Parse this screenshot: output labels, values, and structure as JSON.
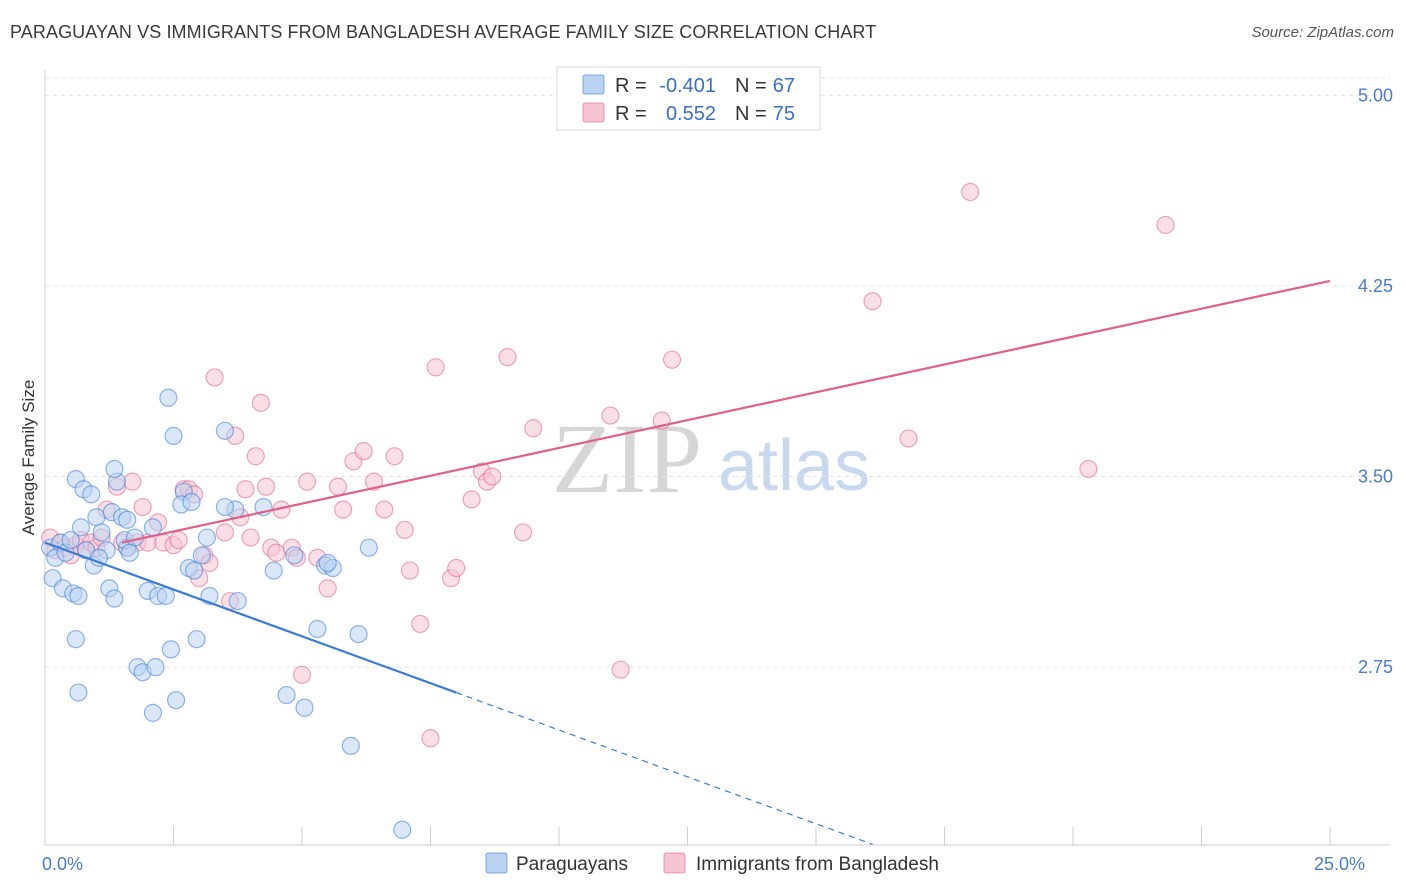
{
  "title": "PARAGUAYAN VS IMMIGRANTS FROM BANGLADESH AVERAGE FAMILY SIZE CORRELATION CHART",
  "source": "Source: ZipAtlas.com",
  "watermark": {
    "zip": "ZIP",
    "atlas": "atlas"
  },
  "colors": {
    "blue": "#3a7bd5",
    "blue_fill": "#b9d3f2",
    "pink": "#e0608a",
    "pink_fill": "#f7c4d4",
    "tick": "#4a7cc9"
  },
  "chart_data": {
    "type": "scatter",
    "xlabel": "",
    "ylabel": "Average Family Size",
    "xlim": [
      0,
      25
    ],
    "ylim": [
      2.05,
      5.1
    ],
    "x_tick_labels": [
      {
        "value": 0,
        "label": "0.0%"
      },
      {
        "value": 25,
        "label": "25.0%"
      }
    ],
    "y_ticks": [
      {
        "value": 2.75,
        "label": "2.75"
      },
      {
        "value": 3.5,
        "label": "3.50"
      },
      {
        "value": 4.25,
        "label": "4.25"
      },
      {
        "value": 5.0,
        "label": "5.00"
      }
    ],
    "legend": {
      "placement": "top-center",
      "rows": [
        {
          "r_label": "R =",
          "r_value": "-0.401",
          "n_label": "N =",
          "n_value": "67"
        },
        {
          "r_label": "R =",
          "r_value": "0.552",
          "n_label": "N =",
          "n_value": "75"
        }
      ]
    },
    "series": [
      {
        "name": "Paraguayans",
        "color": "#3a7bd5",
        "trend": {
          "x0": 0,
          "y0": 3.24,
          "x1": 8,
          "y1": 2.65,
          "dash_to_x": 16.1
        },
        "points": [
          [
            0.1,
            3.22
          ],
          [
            0.2,
            3.18
          ],
          [
            0.15,
            3.1
          ],
          [
            0.3,
            3.24
          ],
          [
            0.4,
            3.2
          ],
          [
            0.35,
            3.06
          ],
          [
            0.5,
            3.25
          ],
          [
            0.6,
            3.49
          ],
          [
            0.7,
            3.3
          ],
          [
            0.55,
            3.04
          ],
          [
            0.65,
            3.03
          ],
          [
            0.8,
            3.21
          ],
          [
            0.75,
            3.45
          ],
          [
            0.9,
            3.43
          ],
          [
            1.0,
            3.34
          ],
          [
            1.1,
            3.28
          ],
          [
            0.95,
            3.15
          ],
          [
            1.2,
            3.21
          ],
          [
            1.05,
            3.18
          ],
          [
            1.3,
            3.36
          ],
          [
            1.4,
            3.48
          ],
          [
            1.25,
            3.06
          ],
          [
            1.35,
            3.02
          ],
          [
            1.5,
            3.34
          ],
          [
            1.6,
            3.22
          ],
          [
            1.55,
            3.25
          ],
          [
            1.75,
            3.26
          ],
          [
            1.65,
            3.2
          ],
          [
            0.6,
            2.86
          ],
          [
            0.65,
            2.65
          ],
          [
            1.35,
            3.53
          ],
          [
            1.6,
            3.33
          ],
          [
            1.8,
            2.75
          ],
          [
            1.9,
            2.73
          ],
          [
            2.0,
            3.05
          ],
          [
            2.1,
            3.3
          ],
          [
            2.15,
            2.75
          ],
          [
            2.2,
            3.03
          ],
          [
            2.35,
            3.03
          ],
          [
            2.4,
            3.81
          ],
          [
            2.45,
            2.82
          ],
          [
            2.5,
            3.66
          ],
          [
            2.55,
            2.62
          ],
          [
            2.7,
            3.44
          ],
          [
            2.65,
            3.39
          ],
          [
            2.8,
            3.14
          ],
          [
            2.85,
            3.4
          ],
          [
            2.9,
            3.13
          ],
          [
            2.95,
            2.86
          ],
          [
            3.05,
            3.19
          ],
          [
            3.15,
            3.26
          ],
          [
            3.2,
            3.03
          ],
          [
            3.5,
            3.68
          ],
          [
            2.1,
            2.57
          ],
          [
            3.7,
            3.37
          ],
          [
            3.75,
            3.01
          ],
          [
            4.25,
            3.38
          ],
          [
            4.45,
            3.13
          ],
          [
            4.85,
            3.19
          ],
          [
            5.05,
            2.59
          ],
          [
            5.3,
            2.9
          ],
          [
            5.45,
            3.15
          ],
          [
            5.6,
            3.14
          ],
          [
            5.5,
            3.16
          ],
          [
            6.1,
            2.88
          ],
          [
            6.3,
            3.22
          ],
          [
            5.95,
            2.44
          ],
          [
            6.95,
            2.11
          ],
          [
            3.5,
            3.38
          ],
          [
            4.7,
            2.64
          ]
        ]
      },
      {
        "name": "Immigrants from Bangladesh",
        "color": "#e0608a",
        "trend": {
          "x0": 1.5,
          "y0": 3.24,
          "x1": 25,
          "y1": 4.27
        },
        "points": [
          [
            0.1,
            3.26
          ],
          [
            0.2,
            3.21
          ],
          [
            0.3,
            3.24
          ],
          [
            0.4,
            3.22
          ],
          [
            0.5,
            3.19
          ],
          [
            0.6,
            3.23
          ],
          [
            0.7,
            3.25
          ],
          [
            0.8,
            3.21
          ],
          [
            0.9,
            3.24
          ],
          [
            1.0,
            3.22
          ],
          [
            1.1,
            3.26
          ],
          [
            1.2,
            3.37
          ],
          [
            1.4,
            3.46
          ],
          [
            1.5,
            3.24
          ],
          [
            1.6,
            3.22
          ],
          [
            1.7,
            3.48
          ],
          [
            1.8,
            3.24
          ],
          [
            1.9,
            3.38
          ],
          [
            2.0,
            3.24
          ],
          [
            2.2,
            3.32
          ],
          [
            2.3,
            3.24
          ],
          [
            2.5,
            3.23
          ],
          [
            2.6,
            3.25
          ],
          [
            2.7,
            3.45
          ],
          [
            2.8,
            3.45
          ],
          [
            2.9,
            3.43
          ],
          [
            3.0,
            3.1
          ],
          [
            3.1,
            3.19
          ],
          [
            3.2,
            3.16
          ],
          [
            3.3,
            3.89
          ],
          [
            3.5,
            3.28
          ],
          [
            3.6,
            3.01
          ],
          [
            3.7,
            3.66
          ],
          [
            3.8,
            3.34
          ],
          [
            3.9,
            3.45
          ],
          [
            4.0,
            3.26
          ],
          [
            4.1,
            3.58
          ],
          [
            4.2,
            3.79
          ],
          [
            4.3,
            3.46
          ],
          [
            4.4,
            3.22
          ],
          [
            4.5,
            3.2
          ],
          [
            4.6,
            3.37
          ],
          [
            4.8,
            3.22
          ],
          [
            4.9,
            3.18
          ],
          [
            5.0,
            2.72
          ],
          [
            5.1,
            3.48
          ],
          [
            5.3,
            3.18
          ],
          [
            5.5,
            3.06
          ],
          [
            5.7,
            3.46
          ],
          [
            5.8,
            3.37
          ],
          [
            6.0,
            3.56
          ],
          [
            6.2,
            3.6
          ],
          [
            6.4,
            3.48
          ],
          [
            6.6,
            3.37
          ],
          [
            6.8,
            3.58
          ],
          [
            7.0,
            3.29
          ],
          [
            7.1,
            3.13
          ],
          [
            7.3,
            2.92
          ],
          [
            7.5,
            2.47
          ],
          [
            7.6,
            3.93
          ],
          [
            7.9,
            3.1
          ],
          [
            8.0,
            3.14
          ],
          [
            8.3,
            3.41
          ],
          [
            8.5,
            3.52
          ],
          [
            8.6,
            3.48
          ],
          [
            8.7,
            3.5
          ],
          [
            9.0,
            3.97
          ],
          [
            9.3,
            3.28
          ],
          [
            9.5,
            3.69
          ],
          [
            11.0,
            3.74
          ],
          [
            11.2,
            2.74
          ],
          [
            12.0,
            3.72
          ],
          [
            16.1,
            4.19
          ],
          [
            16.8,
            3.65
          ],
          [
            18.0,
            4.62
          ],
          [
            20.3,
            3.53
          ],
          [
            21.8,
            4.49
          ],
          [
            12.2,
            3.96
          ]
        ]
      }
    ]
  }
}
